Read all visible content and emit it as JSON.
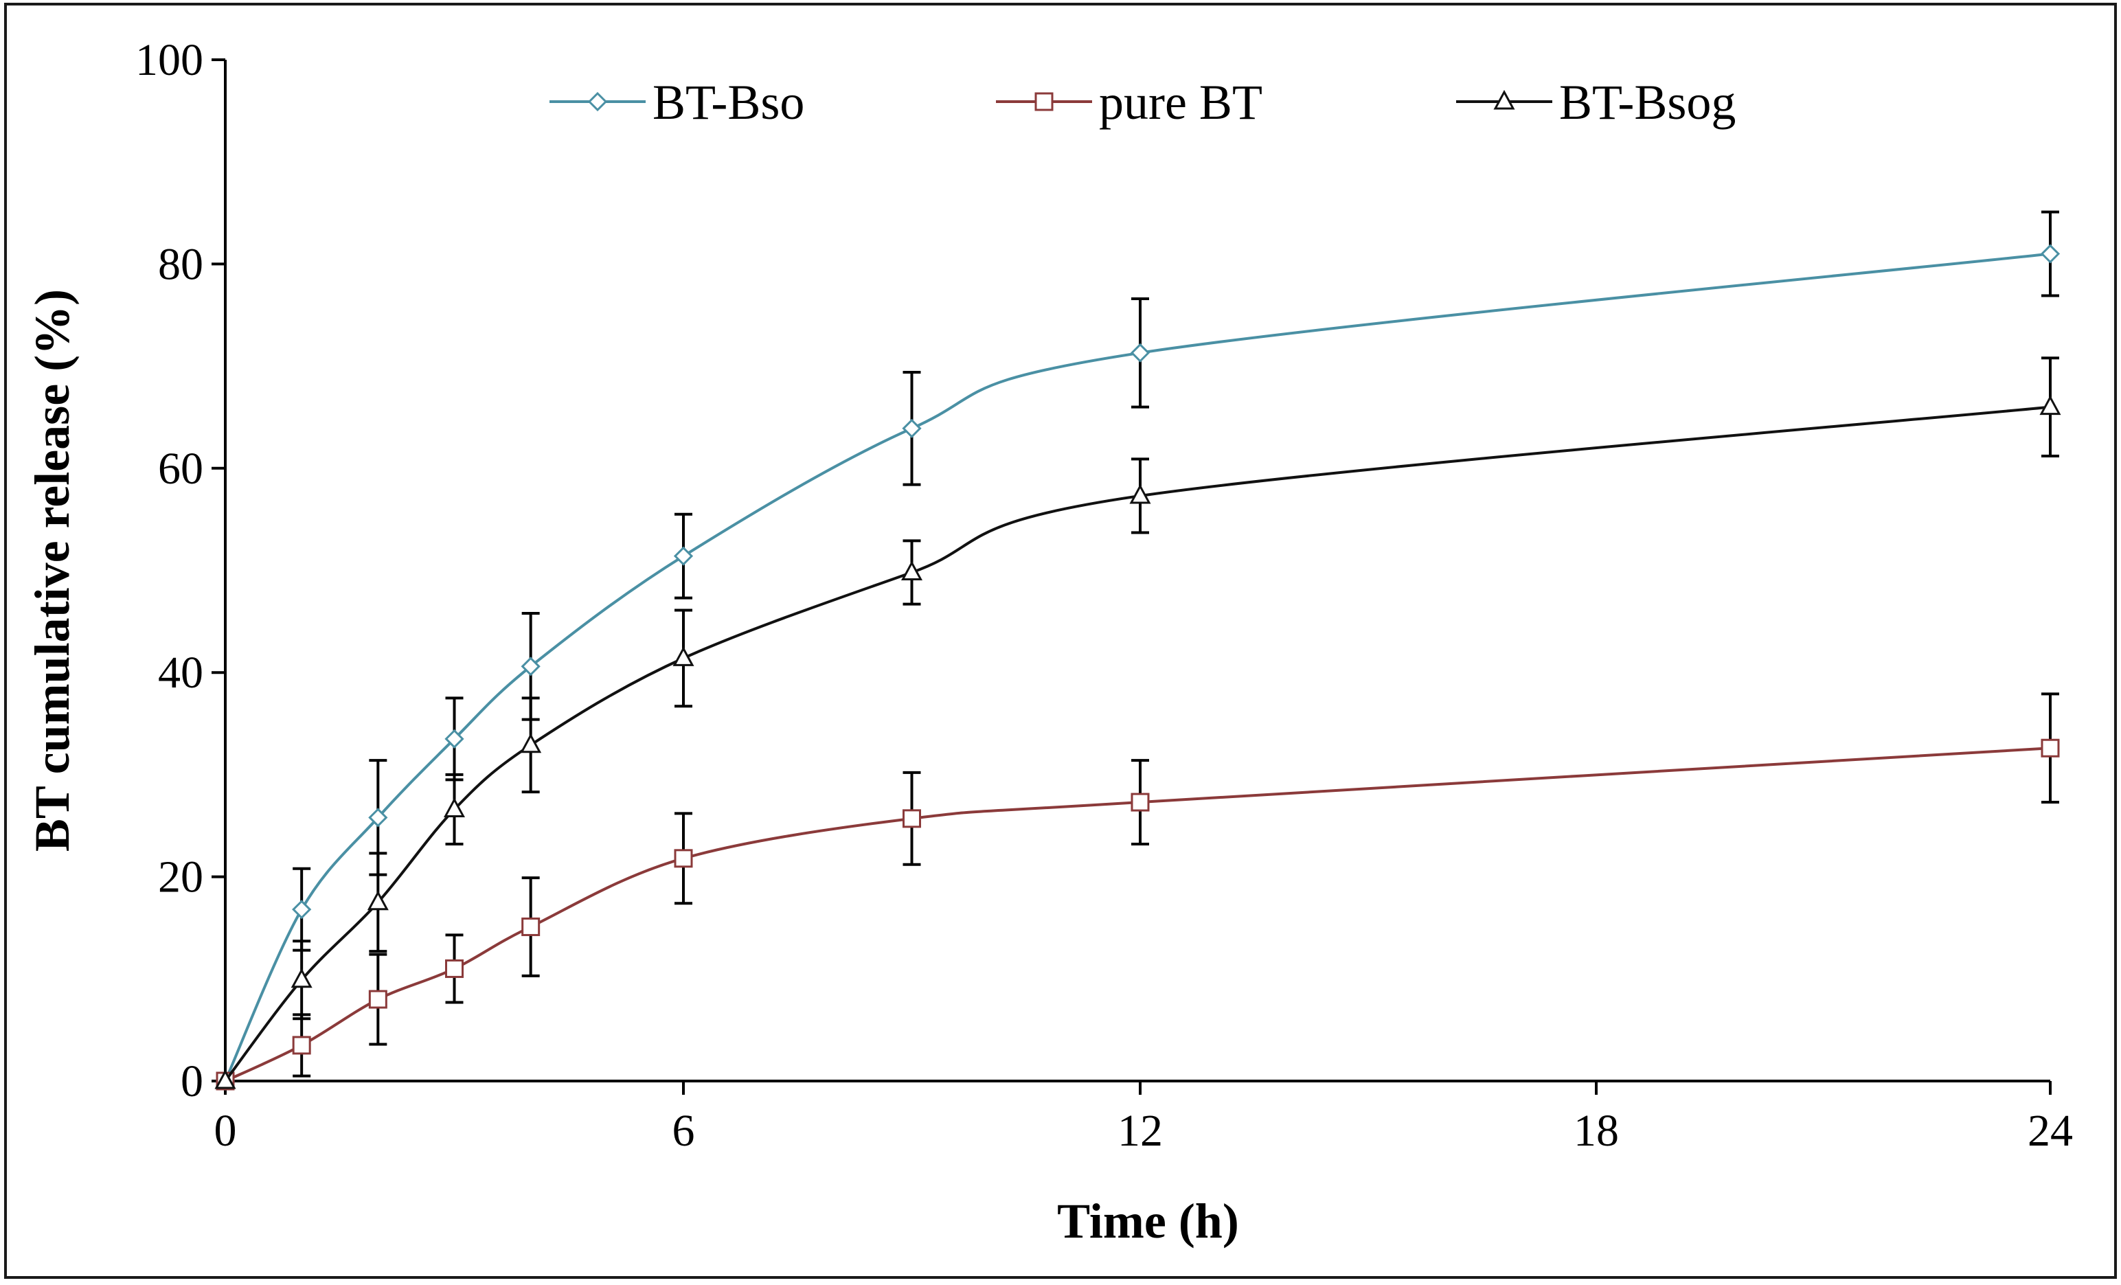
{
  "chart_data": {
    "type": "line",
    "title": "",
    "xlabel": "Time (h)",
    "ylabel": "BT cumulative release (%)",
    "ylim": [
      0,
      100
    ],
    "y_ticks": [
      0,
      20,
      40,
      60,
      80,
      100
    ],
    "x_ticks": [
      0,
      6,
      12,
      18,
      24
    ],
    "x_scale_note": "x positions are equally spaced per 6 h up to 18; 24 placed at the far end",
    "grid": false,
    "legend_position": "top",
    "x": [
      0,
      1,
      2,
      3,
      4,
      6,
      9,
      12,
      24
    ],
    "series": [
      {
        "name": "BT-Bso",
        "marker": "diamond",
        "color": "#4a90a4",
        "values": [
          0,
          16.8,
          25.8,
          33.5,
          40.6,
          51.4,
          63.9,
          71.3,
          81.0
        ],
        "errors": [
          0,
          4.0,
          5.6,
          4.0,
          5.2,
          4.1,
          5.5,
          5.3,
          4.1
        ]
      },
      {
        "name": "pure BT",
        "marker": "square",
        "color": "#8b3a3a",
        "values": [
          0,
          3.5,
          8.0,
          11.0,
          15.1,
          21.8,
          25.7,
          27.3,
          32.6
        ],
        "errors": [
          0,
          3.0,
          4.4,
          3.3,
          4.8,
          4.4,
          4.5,
          4.1,
          5.3
        ]
      },
      {
        "name": "BT-Bsog",
        "marker": "triangle",
        "color": "#111111",
        "values": [
          0,
          9.9,
          17.5,
          26.6,
          32.9,
          41.4,
          49.8,
          57.3,
          66.0
        ],
        "errors": [
          0,
          3.8,
          4.8,
          3.4,
          4.6,
          4.7,
          3.1,
          3.6,
          4.8
        ]
      }
    ]
  }
}
